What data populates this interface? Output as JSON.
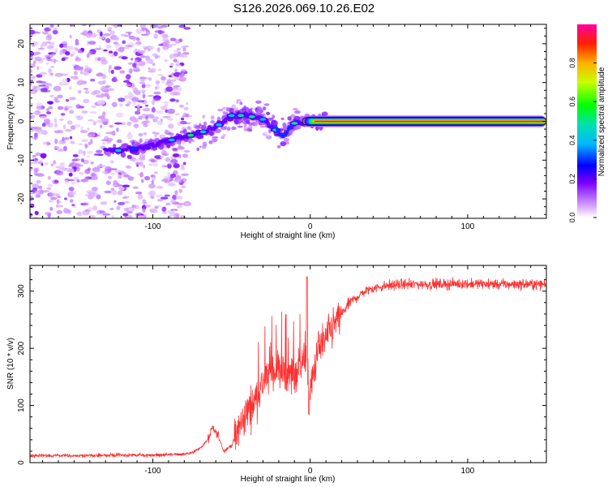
{
  "title": "S126.2026.069.10.26.E02",
  "chart_data": [
    {
      "type": "heatmap",
      "xlabel": "Height of straight line (km)",
      "ylabel": "Frequency (Hz)",
      "xlim": [
        -178,
        150
      ],
      "ylim": [
        -25,
        25
      ],
      "xticks": [
        -100,
        0,
        100
      ],
      "xtick_labels": [
        "-100",
        "0",
        "100"
      ],
      "yticks": [
        -20,
        -10,
        0,
        10,
        20
      ],
      "ytick_labels": [
        "-20",
        "-10",
        "0",
        "10",
        "20"
      ],
      "colorbar": {
        "label": "Normalized spectral amplitude",
        "range": [
          0,
          1
        ],
        "ticks": [
          0.0,
          0.2,
          0.4,
          0.6,
          0.8
        ],
        "tick_labels": [
          "0.0",
          "0.2",
          "0.4",
          "0.6",
          "0.8"
        ]
      },
      "ridge": {
        "x": [
          -130,
          -120,
          -110,
          -100,
          -90,
          -80,
          -70,
          -60,
          -50,
          -40,
          -30,
          -25,
          -20,
          -17,
          -14,
          -10,
          -5,
          0,
          5,
          10,
          50,
          100,
          150
        ],
        "y": [
          -7.5,
          -7.5,
          -7,
          -6,
          -5,
          -4,
          -3,
          -1.5,
          1.5,
          1.5,
          0.5,
          -1,
          -3,
          -4,
          -2,
          -0.5,
          -0.5,
          -0.5,
          0,
          0,
          0,
          0,
          0
        ],
        "amplitude": [
          0.2,
          0.25,
          0.25,
          0.3,
          0.3,
          0.35,
          0.4,
          0.45,
          0.45,
          0.5,
          0.45,
          0.4,
          0.35,
          0.3,
          0.4,
          0.5,
          0.55,
          0.6,
          0.7,
          0.95,
          0.95,
          0.95,
          0.95
        ]
      },
      "noise_region_x": [
        -178,
        -78
      ]
    },
    {
      "type": "line",
      "xlabel": "Height of straight line (km)",
      "ylabel": "SNR (10 * v/v)",
      "xlim": [
        -178,
        150
      ],
      "ylim": [
        0,
        345
      ],
      "xticks": [
        -100,
        0,
        100
      ],
      "xtick_labels": [
        "-100",
        "0",
        "100"
      ],
      "yticks": [
        0,
        100,
        200,
        300
      ],
      "ytick_labels": [
        "0",
        "100",
        "200",
        "300"
      ],
      "color": "#ff3030",
      "series": [
        {
          "name": "SNR",
          "x": [
            -178,
            -150,
            -120,
            -100,
            -90,
            -80,
            -75,
            -70,
            -65,
            -62,
            -58,
            -55,
            -50,
            -45,
            -40,
            -35,
            -30,
            -25,
            -20,
            -15,
            -10,
            -5,
            -2,
            0,
            5,
            10,
            15,
            20,
            25,
            30,
            35,
            40,
            50,
            60,
            80,
            100,
            120,
            150
          ],
          "y": [
            12,
            12,
            13,
            13,
            14,
            15,
            18,
            25,
            40,
            60,
            45,
            20,
            30,
            60,
            90,
            110,
            140,
            160,
            165,
            150,
            155,
            180,
            175,
            120,
            200,
            215,
            240,
            260,
            280,
            290,
            300,
            305,
            310,
            312,
            312,
            313,
            312,
            312
          ]
        }
      ]
    }
  ]
}
